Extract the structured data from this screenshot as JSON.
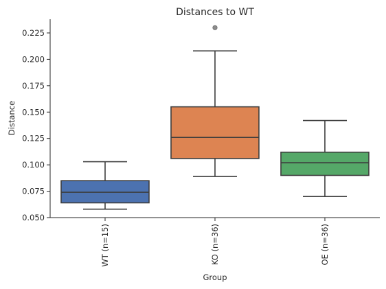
{
  "chart_data": {
    "type": "box",
    "title": "Distances to WT",
    "xlabel": "Group",
    "ylabel": "Distance",
    "ylim": [
      0.05,
      0.238
    ],
    "yticks": [
      "0.050",
      "0.075",
      "0.100",
      "0.125",
      "0.150",
      "0.175",
      "0.200",
      "0.225"
    ],
    "grid": false,
    "legend": "none",
    "categories": [
      "WT (n=15)",
      "KO (n=36)",
      "OE (n=36)"
    ],
    "boxes": [
      {
        "category": "WT (n=15)",
        "whisker_low": 0.058,
        "q1": 0.064,
        "median": 0.074,
        "q3": 0.085,
        "whisker_high": 0.103,
        "outliers": [],
        "color": "#4c72b0"
      },
      {
        "category": "KO (n=36)",
        "whisker_low": 0.089,
        "q1": 0.106,
        "median": 0.126,
        "q3": 0.155,
        "whisker_high": 0.208,
        "outliers": [
          0.23
        ],
        "color": "#dd8452"
      },
      {
        "category": "OE (n=36)",
        "whisker_low": 0.07,
        "q1": 0.09,
        "median": 0.102,
        "q3": 0.112,
        "whisker_high": 0.142,
        "outliers": [],
        "color": "#55a868"
      }
    ]
  }
}
